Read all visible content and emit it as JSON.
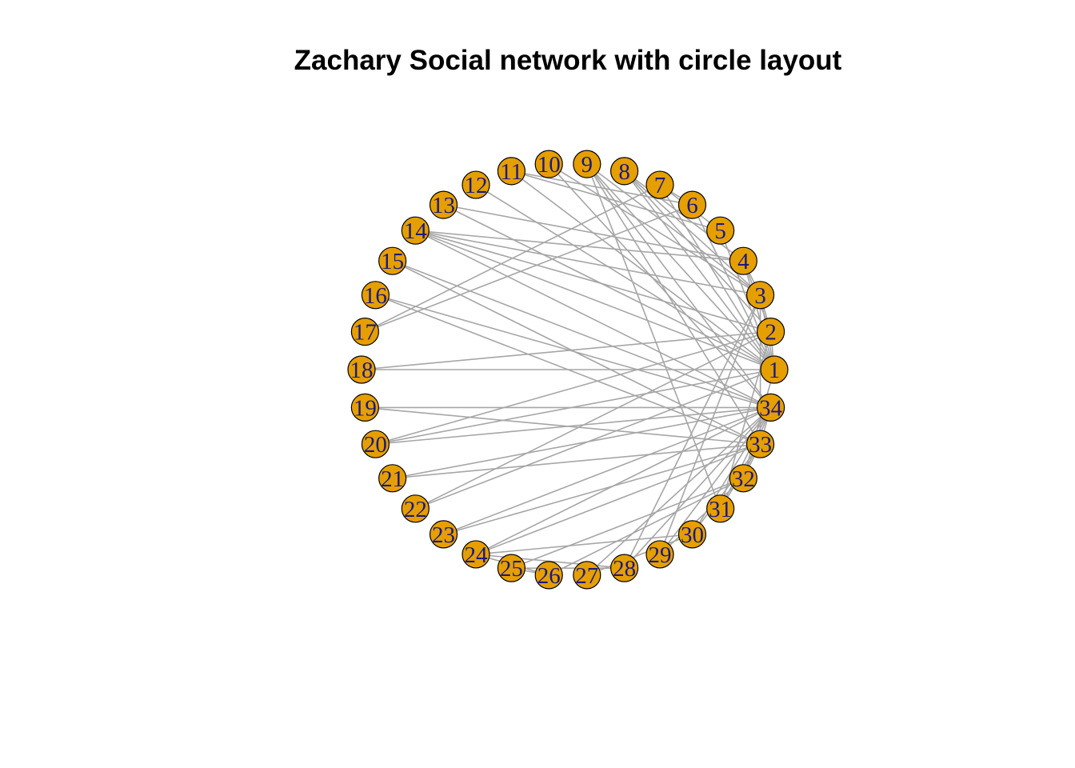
{
  "title": "Zachary Social network with circle layout",
  "colors": {
    "background": "#ffffff",
    "node_fill": "#E69F00",
    "node_stroke": "#000000",
    "label_color": "#1a1a80",
    "edge_color": "#a6a6a6"
  },
  "network": {
    "layout": "circle",
    "nodes": [
      1,
      2,
      3,
      4,
      5,
      6,
      7,
      8,
      9,
      10,
      11,
      12,
      13,
      14,
      15,
      16,
      17,
      18,
      19,
      20,
      21,
      22,
      23,
      24,
      25,
      26,
      27,
      28,
      29,
      30,
      31,
      32,
      33,
      34
    ],
    "edges": [
      [
        1,
        2
      ],
      [
        1,
        3
      ],
      [
        1,
        4
      ],
      [
        1,
        5
      ],
      [
        1,
        6
      ],
      [
        1,
        7
      ],
      [
        1,
        8
      ],
      [
        1,
        9
      ],
      [
        1,
        11
      ],
      [
        1,
        12
      ],
      [
        1,
        13
      ],
      [
        1,
        14
      ],
      [
        1,
        18
      ],
      [
        1,
        20
      ],
      [
        1,
        22
      ],
      [
        1,
        32
      ],
      [
        2,
        3
      ],
      [
        2,
        4
      ],
      [
        2,
        8
      ],
      [
        2,
        14
      ],
      [
        2,
        18
      ],
      [
        2,
        20
      ],
      [
        2,
        22
      ],
      [
        2,
        31
      ],
      [
        3,
        4
      ],
      [
        3,
        8
      ],
      [
        3,
        9
      ],
      [
        3,
        10
      ],
      [
        3,
        14
      ],
      [
        3,
        28
      ],
      [
        3,
        29
      ],
      [
        3,
        33
      ],
      [
        4,
        8
      ],
      [
        4,
        13
      ],
      [
        4,
        14
      ],
      [
        5,
        7
      ],
      [
        5,
        11
      ],
      [
        6,
        7
      ],
      [
        6,
        11
      ],
      [
        6,
        17
      ],
      [
        7,
        17
      ],
      [
        9,
        31
      ],
      [
        9,
        33
      ],
      [
        9,
        34
      ],
      [
        10,
        34
      ],
      [
        14,
        34
      ],
      [
        15,
        33
      ],
      [
        15,
        34
      ],
      [
        16,
        33
      ],
      [
        16,
        34
      ],
      [
        19,
        33
      ],
      [
        19,
        34
      ],
      [
        20,
        34
      ],
      [
        21,
        33
      ],
      [
        21,
        34
      ],
      [
        23,
        33
      ],
      [
        23,
        34
      ],
      [
        24,
        26
      ],
      [
        24,
        28
      ],
      [
        24,
        30
      ],
      [
        24,
        33
      ],
      [
        24,
        34
      ],
      [
        25,
        26
      ],
      [
        25,
        28
      ],
      [
        25,
        32
      ],
      [
        26,
        32
      ],
      [
        27,
        30
      ],
      [
        27,
        34
      ],
      [
        28,
        34
      ],
      [
        29,
        32
      ],
      [
        29,
        34
      ],
      [
        30,
        33
      ],
      [
        30,
        34
      ],
      [
        31,
        33
      ],
      [
        31,
        34
      ],
      [
        32,
        33
      ],
      [
        32,
        34
      ],
      [
        33,
        34
      ]
    ]
  }
}
